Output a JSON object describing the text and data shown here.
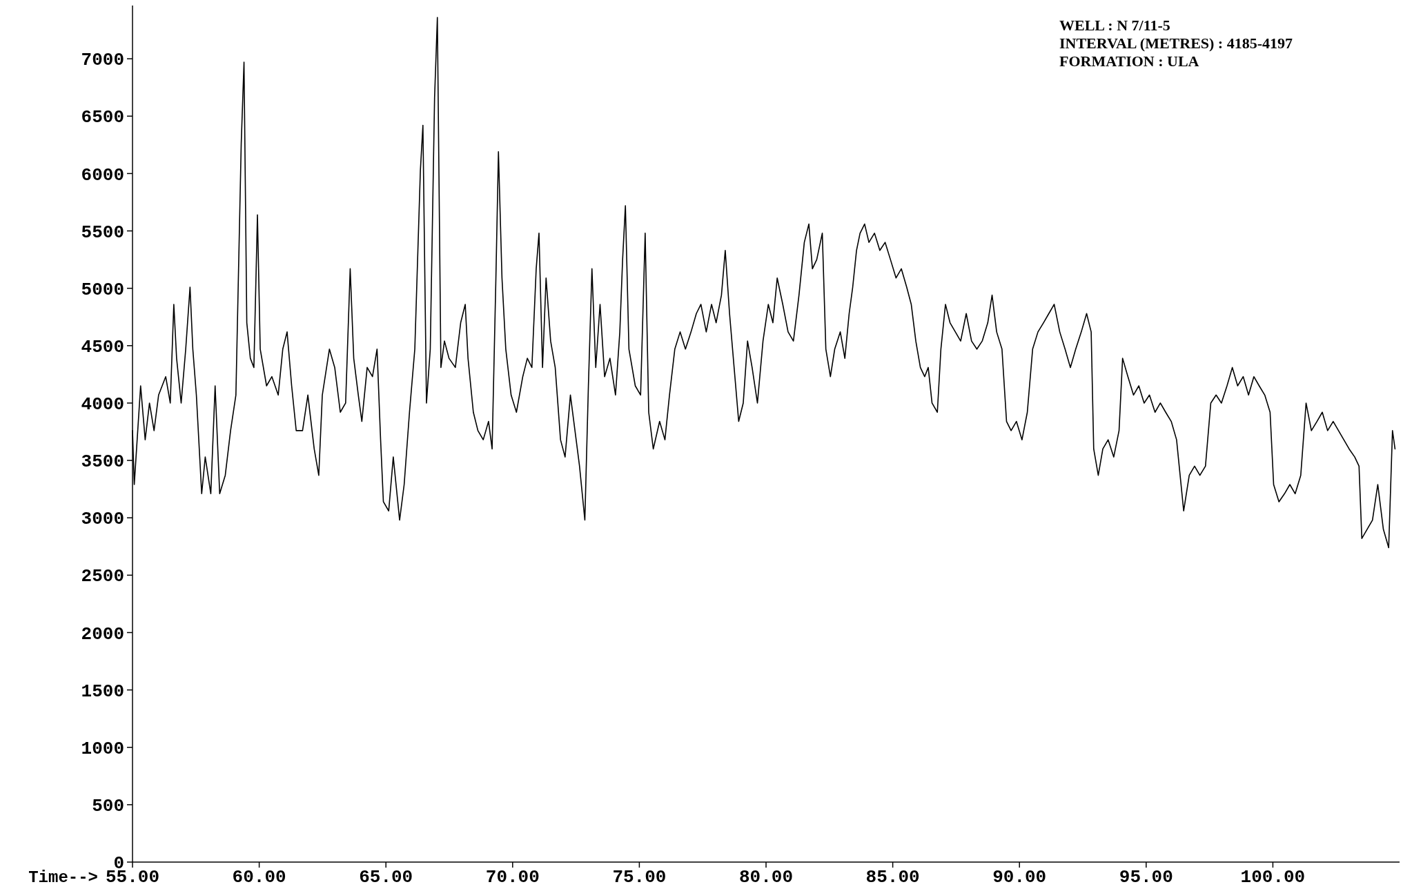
{
  "chart_data": {
    "type": "line",
    "xlabel": "Time-->",
    "annotations": [
      "WELL :  N 7/11-5",
      "INTERVAL (METRES) :  4185-4197",
      "FORMATION :  ULA"
    ],
    "xlim": [
      55,
      105
    ],
    "ylim": [
      0,
      7440
    ],
    "xticks": [
      {
        "value": 55,
        "label": "55.00"
      },
      {
        "value": 60,
        "label": "60.00"
      },
      {
        "value": 65,
        "label": "65.00"
      },
      {
        "value": 70,
        "label": "70.00"
      },
      {
        "value": 75,
        "label": "75.00"
      },
      {
        "value": 80,
        "label": "80.00"
      },
      {
        "value": 85,
        "label": "85.00"
      },
      {
        "value": 90,
        "label": "90.00"
      },
      {
        "value": 95,
        "label": "95.00"
      },
      {
        "value": 100,
        "label": "100.00"
      }
    ],
    "yticks": [
      0,
      500,
      1000,
      1500,
      2000,
      2500,
      3000,
      3500,
      4000,
      4500,
      5000,
      5500,
      6000,
      6500,
      7000
    ],
    "marker": "none",
    "line_style": "solid",
    "series": [
      {
        "color": "#000000",
        "x": [
          55.0,
          55.07,
          55.32,
          55.5,
          55.67,
          55.85,
          56.03,
          56.31,
          56.49,
          56.63,
          56.74,
          56.92,
          57.1,
          57.27,
          57.38,
          57.52,
          57.73,
          57.87,
          58.09,
          58.26,
          58.44,
          58.66,
          58.87,
          59.08,
          59.29,
          59.4,
          59.51,
          59.65,
          59.79,
          59.93,
          60.04,
          60.29,
          60.5,
          60.75,
          60.93,
          61.1,
          61.28,
          61.46,
          61.71,
          61.92,
          62.17,
          62.35,
          62.49,
          62.77,
          62.98,
          63.2,
          63.41,
          63.59,
          63.73,
          63.91,
          64.05,
          64.26,
          64.47,
          64.65,
          64.79,
          64.9,
          65.11,
          65.29,
          65.54,
          65.72,
          65.93,
          66.14,
          66.36,
          66.46,
          66.6,
          66.75,
          66.92,
          67.03,
          67.17,
          67.31,
          67.49,
          67.74,
          67.95,
          68.13,
          68.24,
          68.45,
          68.63,
          68.84,
          69.05,
          69.19,
          69.34,
          69.44,
          69.58,
          69.73,
          69.94,
          70.15,
          70.4,
          70.58,
          70.76,
          70.93,
          71.04,
          71.18,
          71.32,
          71.5,
          71.68,
          71.89,
          72.07,
          72.28,
          72.46,
          72.64,
          72.85,
          72.99,
          73.13,
          73.28,
          73.45,
          73.63,
          73.84,
          74.06,
          74.23,
          74.34,
          74.45,
          74.59,
          74.84,
          75.05,
          75.23,
          75.37,
          75.55,
          75.8,
          76.01,
          76.19,
          76.4,
          76.61,
          76.82,
          77.04,
          77.25,
          77.43,
          77.64,
          77.85,
          78.03,
          78.24,
          78.39,
          78.56,
          78.74,
          78.92,
          79.1,
          79.27,
          79.45,
          79.66,
          79.88,
          80.09,
          80.27,
          80.44,
          80.66,
          80.87,
          81.08,
          81.3,
          81.51,
          81.69,
          81.83,
          82.0,
          82.22,
          82.36,
          82.54,
          82.71,
          82.93,
          83.11,
          83.28,
          83.42,
          83.57,
          83.71,
          83.89,
          84.06,
          84.28,
          84.49,
          84.7,
          84.91,
          85.13,
          85.34,
          85.55,
          85.73,
          85.91,
          86.09,
          86.26,
          86.4,
          86.55,
          86.76,
          86.9,
          87.08,
          87.26,
          87.47,
          87.68,
          87.9,
          88.11,
          88.32,
          88.53,
          88.75,
          88.92,
          89.1,
          89.31,
          89.49,
          89.67,
          89.88,
          90.1,
          90.31,
          90.52,
          90.73,
          90.95,
          91.16,
          91.37,
          91.59,
          91.8,
          92.01,
          92.22,
          92.44,
          92.65,
          92.83,
          92.93,
          93.11,
          93.29,
          93.5,
          93.72,
          93.93,
          94.07,
          94.28,
          94.5,
          94.71,
          94.92,
          95.13,
          95.35,
          95.56,
          95.77,
          95.99,
          96.2,
          96.34,
          96.48,
          96.7,
          96.91,
          97.12,
          97.34,
          97.55,
          97.76,
          97.97,
          98.19,
          98.4,
          98.61,
          98.83,
          99.04,
          99.25,
          99.46,
          99.68,
          99.89,
          100.03,
          100.24,
          100.46,
          100.67,
          100.88,
          101.1,
          101.31,
          101.52,
          101.74,
          101.95,
          102.16,
          102.38,
          102.59,
          102.8,
          103.01,
          103.23,
          103.4,
          103.51,
          103.72,
          103.93,
          104.14,
          104.36,
          104.57,
          104.72,
          104.82
        ],
        "values": [
          3760,
          3290,
          4150,
          3680,
          4000,
          3760,
          4070,
          4230,
          4000,
          4860,
          4390,
          4000,
          4470,
          5010,
          4470,
          4070,
          3210,
          3530,
          3210,
          4150,
          3210,
          3370,
          3760,
          4070,
          6260,
          6970,
          4700,
          4390,
          4310,
          5640,
          4470,
          4150,
          4230,
          4070,
          4470,
          4620,
          4150,
          3760,
          3760,
          4070,
          3600,
          3370,
          4070,
          4470,
          4310,
          3920,
          4000,
          5170,
          4390,
          4070,
          3840,
          4310,
          4230,
          4470,
          3680,
          3140,
          3060,
          3530,
          2980,
          3290,
          3920,
          4470,
          6030,
          6420,
          4000,
          4470,
          6660,
          7360,
          4310,
          4540,
          4390,
          4310,
          4700,
          4860,
          4390,
          3920,
          3760,
          3680,
          3840,
          3600,
          5090,
          6190,
          5090,
          4470,
          4070,
          3920,
          4230,
          4390,
          4310,
          5170,
          5480,
          4310,
          5090,
          4540,
          4310,
          3680,
          3530,
          4070,
          3760,
          3450,
          2980,
          4150,
          5170,
          4310,
          4860,
          4230,
          4390,
          4070,
          4620,
          5250,
          5720,
          4470,
          4150,
          4070,
          5480,
          3920,
          3600,
          3840,
          3680,
          4070,
          4470,
          4620,
          4470,
          4620,
          4780,
          4860,
          4620,
          4860,
          4700,
          4940,
          5330,
          4780,
          4310,
          3840,
          4000,
          4540,
          4310,
          4000,
          4540,
          4860,
          4700,
          5090,
          4860,
          4620,
          4540,
          4940,
          5400,
          5560,
          5170,
          5250,
          5480,
          4470,
          4230,
          4470,
          4620,
          4390,
          4780,
          5010,
          5330,
          5480,
          5560,
          5400,
          5480,
          5330,
          5400,
          5250,
          5090,
          5170,
          5010,
          4860,
          4540,
          4310,
          4230,
          4310,
          4000,
          3920,
          4470,
          4860,
          4700,
          4620,
          4540,
          4780,
          4540,
          4470,
          4540,
          4700,
          4940,
          4620,
          4470,
          3840,
          3760,
          3840,
          3680,
          3920,
          4470,
          4620,
          4700,
          4780,
          4860,
          4620,
          4470,
          4310,
          4470,
          4620,
          4780,
          4620,
          3600,
          3370,
          3600,
          3680,
          3530,
          3760,
          4390,
          4230,
          4070,
          4150,
          4000,
          4070,
          3920,
          4000,
          3920,
          3840,
          3680,
          3370,
          3060,
          3370,
          3450,
          3370,
          3450,
          4000,
          4070,
          4000,
          4150,
          4310,
          4150,
          4230,
          4070,
          4230,
          4150,
          4070,
          3920,
          3290,
          3140,
          3210,
          3290,
          3210,
          3370,
          4000,
          3760,
          3840,
          3920,
          3760,
          3840,
          3760,
          3680,
          3600,
          3530,
          3450,
          2820,
          2900,
          2980,
          3290,
          2900,
          2740,
          3760,
          3600
        ]
      }
    ]
  }
}
